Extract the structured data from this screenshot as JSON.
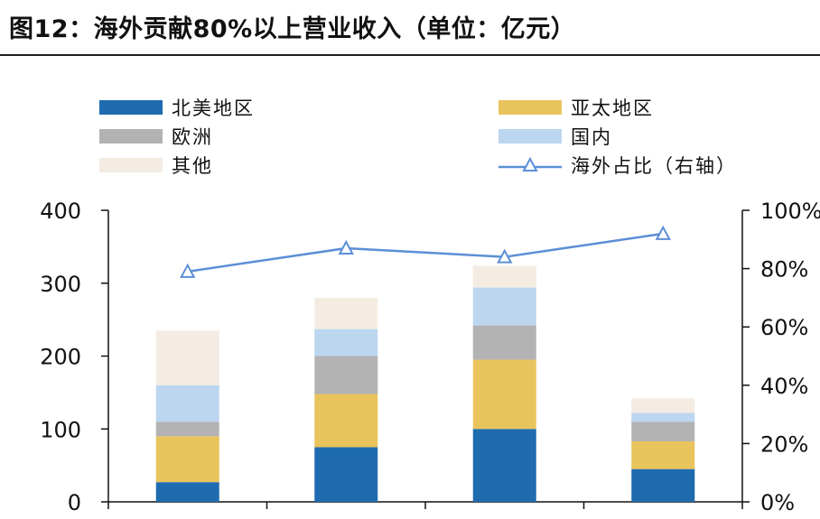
{
  "title": "图12：海外贡献80%以上营业收入（单位：亿元）",
  "chart_data": {
    "type": "bar",
    "stacked": true,
    "categories": [
      "",
      "",
      "",
      ""
    ],
    "series": [
      {
        "name": "北美地区",
        "color": "#1f6bb0",
        "values": [
          27,
          75,
          100,
          45
        ]
      },
      {
        "name": "亚太地区",
        "color": "#e9c45d",
        "values": [
          63,
          73,
          95,
          38
        ]
      },
      {
        "name": "欧洲",
        "color": "#b3b3b3",
        "values": [
          20,
          52,
          47,
          27
        ]
      },
      {
        "name": "国内",
        "color": "#bcd6f0",
        "values": [
          50,
          37,
          52,
          12
        ]
      },
      {
        "name": "其他",
        "color": "#f4ece2",
        "values": [
          75,
          43,
          30,
          20
        ]
      }
    ],
    "line": {
      "name": "海外占比（右轴）",
      "color": "#5b8fd6",
      "axis": "right",
      "values": [
        79,
        87,
        84,
        92
      ]
    },
    "ylim": [
      0,
      400
    ],
    "yticks": [
      "0",
      "100",
      "200",
      "300",
      "400"
    ],
    "y2lim": [
      0,
      100
    ],
    "y2ticks": [
      "0%",
      "20%",
      "40%",
      "60%",
      "80%",
      "100%"
    ],
    "legend_position": "top"
  }
}
